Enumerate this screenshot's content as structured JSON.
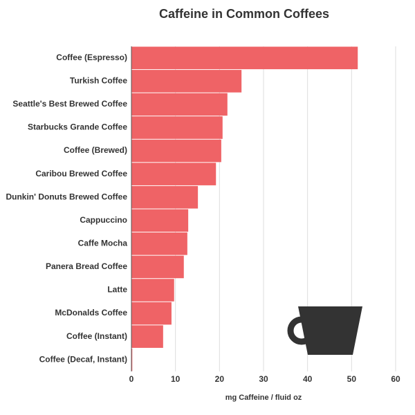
{
  "chart_data": {
    "type": "bar",
    "orientation": "horizontal",
    "title": "Caffeine in Common Coffees",
    "x_label": "mg Caffeine / fluid oz",
    "categories": [
      "Coffee (Espresso)",
      "Turkish Coffee",
      "Seattle's Best Brewed Coffee",
      "Starbucks Grande Coffee",
      "Coffee (Brewed)",
      "Caribou Brewed Coffee",
      "Dunkin' Donuts Brewed Coffee",
      "Cappuccino",
      "Caffe Mocha",
      "Panera Bread Coffee",
      "Latte",
      "McDonalds Coffee",
      "Coffee (Instant)",
      "Coffee (Decaf, Instant)"
    ],
    "values": [
      51.4,
      25.0,
      21.8,
      20.7,
      20.4,
      19.2,
      15.1,
      12.9,
      12.7,
      11.9,
      9.7,
      9.1,
      7.2,
      0.2
    ],
    "color": "#ef6366",
    "xlim": [
      0,
      60
    ],
    "xticks": [
      0,
      10,
      20,
      30,
      40,
      50,
      60
    ],
    "grid": true
  }
}
